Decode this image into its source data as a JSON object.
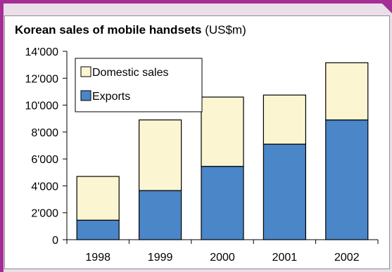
{
  "chart_data": {
    "type": "bar",
    "stacked": true,
    "title": "Korean sales of mobile handsets",
    "title_unit": "(US$m)",
    "categories": [
      "1998",
      "1999",
      "2000",
      "2001",
      "2002"
    ],
    "series": [
      {
        "name": "Exports",
        "values": [
          1450,
          3650,
          5450,
          7100,
          8900
        ],
        "color": "#4a86c8"
      },
      {
        "name": "Domestic sales",
        "values": [
          3250,
          5250,
          5150,
          3650,
          4250
        ],
        "color": "#fbf6d1"
      }
    ],
    "ylim": [
      0,
      14000
    ],
    "yticks": [
      0,
      2000,
      4000,
      6000,
      8000,
      10000,
      12000,
      14000
    ],
    "ytick_labels": [
      "0",
      "2'000",
      "4'000",
      "6'000",
      "8'000",
      "10'000",
      "12'000",
      "14'000"
    ],
    "legend": {
      "placement": "top-left",
      "items": [
        "Domestic sales",
        "Exports"
      ]
    },
    "grid": false
  }
}
